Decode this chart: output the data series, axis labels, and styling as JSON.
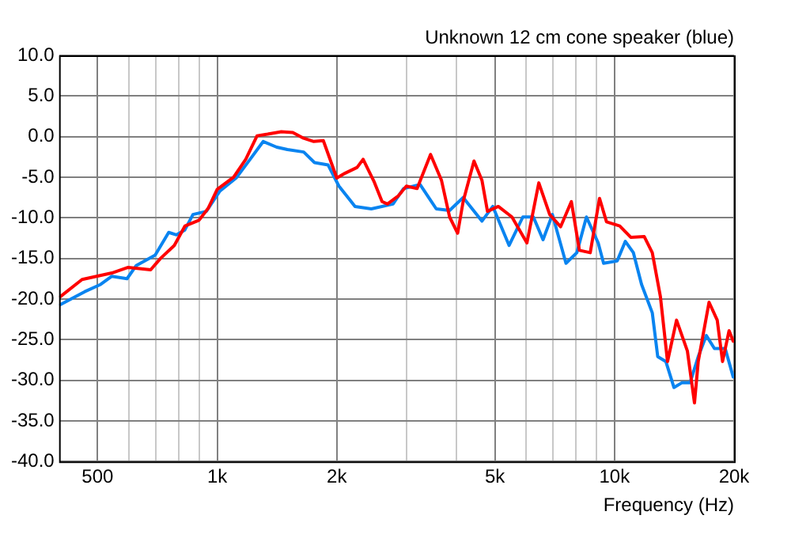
{
  "chart_data": {
    "type": "line",
    "title": "Unknown 12 cm cone speaker (blue)",
    "xlabel": "Frequency (Hz)",
    "log": "x",
    "grid": true,
    "legend": false,
    "marker": "none",
    "line_style": "solid",
    "xlim": [
      400,
      20000
    ],
    "xticks": [
      {
        "value": 500,
        "label": "500"
      },
      {
        "value": 600,
        "label": null
      },
      {
        "value": 700,
        "label": null
      },
      {
        "value": 800,
        "label": null
      },
      {
        "value": 900,
        "label": null
      },
      {
        "value": 1000,
        "label": "1k"
      },
      {
        "value": 2000,
        "label": "2k"
      },
      {
        "value": 3000,
        "label": null
      },
      {
        "value": 4000,
        "label": null
      },
      {
        "value": 5000,
        "label": "5k"
      },
      {
        "value": 6000,
        "label": null
      },
      {
        "value": 7000,
        "label": null
      },
      {
        "value": 8000,
        "label": null
      },
      {
        "value": 9000,
        "label": null
      },
      {
        "value": 10000,
        "label": "10k"
      },
      {
        "value": 20000,
        "label": "20k"
      }
    ],
    "ylim": [
      -40,
      10
    ],
    "yticks": [
      {
        "value": -40,
        "label": "-40.0"
      },
      {
        "value": -35,
        "label": "-35.0"
      },
      {
        "value": -30,
        "label": "-30.0"
      },
      {
        "value": -25,
        "label": "-25.0"
      },
      {
        "value": -20,
        "label": "-20.0"
      },
      {
        "value": -15,
        "label": "-15.0"
      },
      {
        "value": -10,
        "label": "-10.0"
      },
      {
        "value": -5,
        "label": "-5.0"
      },
      {
        "value": 0,
        "label": "0.0"
      },
      {
        "value": 5,
        "label": "5.0"
      },
      {
        "value": 10,
        "label": "10.0"
      }
    ],
    "series": [
      {
        "color": "#ff0000",
        "x": [
          403,
          457,
          543,
          597,
          680,
          720,
          780,
          830,
          900,
          950,
          1000,
          1100,
          1180,
          1260,
          1340,
          1450,
          1550,
          1650,
          1750,
          1850,
          2000,
          2100,
          2250,
          2330,
          2480,
          2600,
          2683,
          2857,
          2994,
          3186,
          3444,
          3670,
          3846,
          4030,
          4160,
          4430,
          4640,
          4790,
          5100,
          5520,
          6020,
          6450,
          6870,
          7320,
          7790,
          8160,
          8690,
          9170,
          9550,
          10310,
          10990,
          11880,
          12450,
          13050,
          13600,
          14330,
          15260,
          15900,
          16250,
          17300,
          18140,
          18710,
          19430,
          19900
        ],
        "values": [
          -19.7,
          -17.6,
          -16.8,
          -16.1,
          -16.4,
          -15.0,
          -13.4,
          -11.0,
          -10.3,
          -8.8,
          -6.5,
          -5.0,
          -2.8,
          0.1,
          0.3,
          0.6,
          0.5,
          -0.2,
          -0.6,
          -0.5,
          -5.1,
          -4.5,
          -3.8,
          -2.8,
          -5.5,
          -8.0,
          -8.3,
          -7.3,
          -6.1,
          -6.4,
          -2.2,
          -5.4,
          -9.9,
          -11.9,
          -8.0,
          -3.0,
          -5.4,
          -9.2,
          -8.6,
          -9.9,
          -13.1,
          -5.7,
          -9.6,
          -11.1,
          -8.0,
          -14.0,
          -14.3,
          -7.6,
          -10.5,
          -11.0,
          -12.4,
          -12.3,
          -14.3,
          -19.7,
          -27.7,
          -22.6,
          -26.4,
          -32.8,
          -27.7,
          -20.4,
          -22.6,
          -27.7,
          -23.9,
          -25.2
        ]
      },
      {
        "color": "#0a84f0",
        "x": [
          403,
          464,
          509,
          543,
          593,
          625,
          698,
          755,
          790,
          829,
          869,
          939,
          1016,
          1116,
          1206,
          1306,
          1412,
          1502,
          1651,
          1758,
          1902,
          2025,
          2223,
          2443,
          2770,
          2945,
          3240,
          3560,
          3846,
          4160,
          4640,
          4940,
          5430,
          5880,
          6250,
          6610,
          6980,
          7550,
          8040,
          8500,
          9100,
          9390,
          10160,
          10650,
          11160,
          11700,
          12450,
          12850,
          13470,
          14120,
          14800,
          15500,
          16250,
          17030,
          17850,
          19000,
          19900
        ],
        "values": [
          -20.7,
          -19.1,
          -18.2,
          -17.2,
          -17.5,
          -15.9,
          -14.6,
          -11.8,
          -12.1,
          -11.5,
          -9.6,
          -9.2,
          -6.7,
          -5.1,
          -2.9,
          -0.6,
          -1.3,
          -1.6,
          -1.9,
          -3.2,
          -3.5,
          -6.1,
          -8.6,
          -8.9,
          -8.3,
          -6.4,
          -5.9,
          -8.9,
          -9.1,
          -7.5,
          -10.4,
          -8.6,
          -13.4,
          -9.9,
          -9.9,
          -12.7,
          -9.6,
          -15.6,
          -14.3,
          -9.9,
          -13.1,
          -15.6,
          -15.3,
          -12.9,
          -14.3,
          -18.2,
          -21.7,
          -27.1,
          -27.7,
          -30.9,
          -30.3,
          -30.3,
          -27.1,
          -24.5,
          -26.1,
          -26.1,
          -29.6
        ]
      }
    ]
  }
}
